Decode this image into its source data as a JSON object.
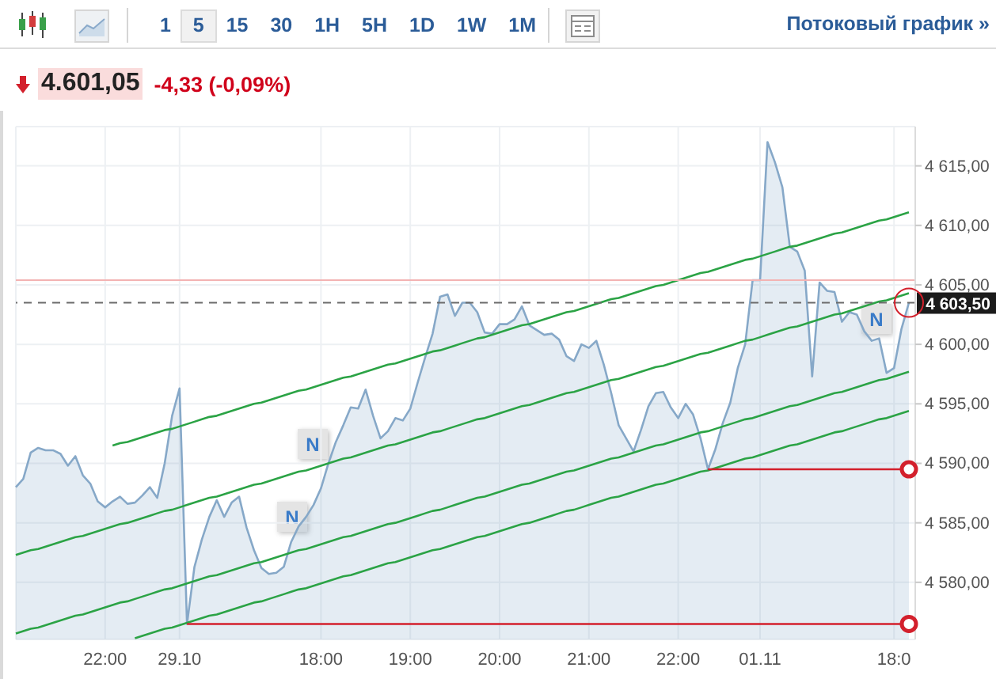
{
  "chart_data": {
    "type": "area",
    "title": "4.601,05",
    "subtitle": "-4,33 (-0,09%)",
    "annotations": [
      "1 5 15 30 1H 5H 1D 1W 1M",
      "Потоковый график »",
      "N",
      "N",
      "N"
    ],
    "categories": [
      null,
      null,
      null,
      null,
      null,
      null,
      null,
      null,
      null,
      null,
      null,
      null,
      "22:00",
      null,
      null,
      null,
      null,
      null,
      null,
      null,
      null,
      null,
      "29.10",
      null,
      null,
      null,
      null,
      null,
      null,
      null,
      null,
      null,
      null,
      null,
      null,
      null,
      null,
      null,
      null,
      null,
      null,
      "18:00",
      null,
      null,
      null,
      null,
      null,
      null,
      null,
      null,
      null,
      null,
      null,
      "19:00",
      null,
      null,
      null,
      null,
      null,
      null,
      null,
      null,
      null,
      null,
      null,
      "20:00",
      null,
      null,
      null,
      null,
      null,
      null,
      null,
      null,
      null,
      null,
      null,
      "21:00",
      null,
      null,
      null,
      null,
      null,
      null,
      null,
      null,
      null,
      null,
      null,
      "22:00",
      null,
      null,
      null,
      null,
      null,
      null,
      null,
      null,
      null,
      null,
      "01.11",
      null,
      null,
      null,
      null,
      null,
      null,
      null,
      null,
      null,
      null,
      null,
      null,
      null,
      null,
      null,
      null,
      null,
      "18:0",
      null,
      null
    ],
    "series": [
      {
        "color": "#86a8c8",
        "values": [
          4588.0,
          4588.7,
          4590.9,
          4591.3,
          4591.1,
          4591.1,
          4590.8,
          4589.8,
          4590.6,
          4589.0,
          4588.3,
          4586.8,
          4586.3,
          4586.8,
          4587.2,
          4586.6,
          4586.7,
          4587.3,
          4588.0,
          4587.1,
          4590.0,
          4594.0,
          4596.3,
          4576.5,
          4581.3,
          4583.6,
          4585.5,
          4586.9,
          4585.5,
          4586.7,
          4587.2,
          4584.6,
          4582.7,
          4581.2,
          4580.7,
          4580.8,
          4581.3,
          4583.4,
          4584.7,
          4585.5,
          4586.5,
          4587.9,
          4590.0,
          4591.8,
          4593.2,
          4594.7,
          4594.6,
          4596.2,
          4594.0,
          4592.1,
          4592.7,
          4593.8,
          4593.6,
          4594.6,
          4596.8,
          4598.9,
          4600.9,
          4604.0,
          4604.2,
          4602.4,
          4603.5,
          4603.5,
          4602.7,
          4601.0,
          4600.9,
          4601.7,
          4601.7,
          4602.1,
          4603.2,
          4601.6,
          4601.2,
          4600.8,
          4600.9,
          4600.4,
          4599.0,
          4598.6,
          4600.0,
          4599.7,
          4600.3,
          4598.3,
          4595.9,
          4593.2,
          4592.1,
          4591.0,
          4592.8,
          4594.8,
          4595.9,
          4596.0,
          4594.7,
          4593.8,
          4595.0,
          4594.1,
          4592.1,
          4589.5,
          4591.2,
          4593.4,
          4595.1,
          4598.0,
          4600.0,
          4605.4,
          4605.4,
          4617.0,
          4615.3,
          4613.2,
          4608.2,
          4607.8,
          4606.2,
          4597.3,
          4605.2,
          4604.5,
          4604.4,
          4601.9,
          4602.7,
          4602.5,
          4601.1,
          4600.3,
          4600.5,
          4597.6,
          4598.0,
          4601.3,
          4603.5
        ]
      },
      {
        "type": "line",
        "color": "#2ba345",
        "values": [
          null,
          null,
          null,
          null,
          null,
          null,
          null,
          null,
          null,
          null,
          null,
          null,
          null,
          4591.5,
          4591.7,
          4591.8,
          4592.0,
          4592.2,
          4592.4,
          4592.6,
          4592.8,
          4592.9,
          4593.1,
          4593.3,
          4593.5,
          4593.7,
          4593.9,
          4594.0,
          4594.2,
          4594.4,
          4594.6,
          4594.8,
          4595.0,
          4595.1,
          4595.3,
          4595.5,
          4595.7,
          4595.9,
          4596.1,
          4596.2,
          4596.4,
          4596.6,
          4596.8,
          4597.0,
          4597.2,
          4597.3,
          4597.5,
          4597.7,
          4597.9,
          4598.1,
          4598.3,
          4598.4,
          4598.6,
          4598.8,
          4599.0,
          4599.2,
          4599.4,
          4599.5,
          4599.7,
          4599.9,
          4600.1,
          4600.3,
          4600.5,
          4600.6,
          4600.8,
          4601.0,
          4601.2,
          4601.4,
          4601.6,
          4601.7,
          4601.9,
          4602.1,
          4602.3,
          4602.5,
          4602.7,
          4602.8,
          4603.0,
          4603.2,
          4603.4,
          4603.6,
          4603.8,
          4603.9,
          4604.1,
          4604.3,
          4604.5,
          4604.7,
          4604.9,
          4605.0,
          4605.2,
          4605.4,
          4605.6,
          4605.8,
          4606.0,
          4606.1,
          4606.3,
          4606.5,
          4606.7,
          4606.9,
          4607.1,
          4607.2,
          4607.4,
          4607.6,
          4607.8,
          4608.0,
          4608.2,
          4608.3,
          4608.5,
          4608.7,
          4608.9,
          4609.1,
          4609.3,
          4609.4,
          4609.6,
          4609.8,
          4610.0,
          4610.2,
          4610.4,
          4610.5,
          4610.7,
          4610.9,
          4611.1
        ]
      },
      {
        "type": "line",
        "color": "#2ba345",
        "values": [
          4582.3,
          4582.5,
          4582.7,
          4582.8,
          4583.0,
          4583.2,
          4583.4,
          4583.6,
          4583.8,
          4583.9,
          4584.1,
          4584.3,
          4584.5,
          4584.7,
          4584.9,
          4585.0,
          4585.2,
          4585.4,
          4585.6,
          4585.8,
          4586.0,
          4586.1,
          4586.3,
          4586.5,
          4586.7,
          4586.9,
          4587.1,
          4587.2,
          4587.4,
          4587.6,
          4587.8,
          4588.0,
          4588.2,
          4588.3,
          4588.5,
          4588.7,
          4588.9,
          4589.1,
          4589.3,
          4589.4,
          4589.6,
          4589.8,
          4590.0,
          4590.2,
          4590.4,
          4590.5,
          4590.7,
          4590.9,
          4591.1,
          4591.3,
          4591.5,
          4591.6,
          4591.8,
          4592.0,
          4592.2,
          4592.4,
          4592.6,
          4592.7,
          4592.9,
          4593.1,
          4593.3,
          4593.5,
          4593.7,
          4593.8,
          4594.0,
          4594.2,
          4594.4,
          4594.6,
          4594.8,
          4594.9,
          4595.1,
          4595.3,
          4595.5,
          4595.7,
          4595.9,
          4596.0,
          4596.2,
          4596.4,
          4596.6,
          4596.8,
          4597.0,
          4597.1,
          4597.3,
          4597.5,
          4597.7,
          4597.9,
          4598.1,
          4598.2,
          4598.4,
          4598.6,
          4598.8,
          4599.0,
          4599.2,
          4599.3,
          4599.5,
          4599.7,
          4599.9,
          4600.1,
          4600.3,
          4600.4,
          4600.6,
          4600.8,
          4601.0,
          4601.2,
          4601.4,
          4601.5,
          4601.7,
          4601.9,
          4602.1,
          4602.3,
          4602.5,
          4602.6,
          4602.8,
          4603.0,
          4603.2,
          4603.4,
          4603.6,
          4603.7,
          4603.9,
          4604.1,
          4604.3
        ]
      },
      {
        "type": "line",
        "color": "#2ba345",
        "values": [
          4575.7,
          4575.9,
          4576.1,
          4576.2,
          4576.4,
          4576.6,
          4576.8,
          4577.0,
          4577.2,
          4577.3,
          4577.5,
          4577.7,
          4577.9,
          4578.1,
          4578.3,
          4578.4,
          4578.6,
          4578.8,
          4579.0,
          4579.2,
          4579.4,
          4579.5,
          4579.7,
          4579.9,
          4580.1,
          4580.3,
          4580.5,
          4580.6,
          4580.8,
          4581.0,
          4581.2,
          4581.4,
          4581.6,
          4581.7,
          4581.9,
          4582.1,
          4582.3,
          4582.5,
          4582.7,
          4582.8,
          4583.0,
          4583.2,
          4583.4,
          4583.6,
          4583.8,
          4583.9,
          4584.1,
          4584.3,
          4584.5,
          4584.7,
          4584.9,
          4585.0,
          4585.2,
          4585.4,
          4585.6,
          4585.8,
          4586.0,
          4586.1,
          4586.3,
          4586.5,
          4586.7,
          4586.9,
          4587.1,
          4587.2,
          4587.4,
          4587.6,
          4587.8,
          4588.0,
          4588.2,
          4588.3,
          4588.5,
          4588.7,
          4588.9,
          4589.1,
          4589.3,
          4589.4,
          4589.6,
          4589.8,
          4590.0,
          4590.2,
          4590.4,
          4590.5,
          4590.7,
          4590.9,
          4591.1,
          4591.3,
          4591.5,
          4591.6,
          4591.8,
          4592.0,
          4592.2,
          4592.4,
          4592.6,
          4592.7,
          4592.9,
          4593.1,
          4593.3,
          4593.5,
          4593.7,
          4593.8,
          4594.0,
          4594.2,
          4594.4,
          4594.6,
          4594.8,
          4594.9,
          4595.1,
          4595.3,
          4595.5,
          4595.7,
          4595.9,
          4596.0,
          4596.2,
          4596.4,
          4596.6,
          4596.8,
          4597.0,
          4597.1,
          4597.3,
          4597.5,
          4597.7
        ]
      },
      {
        "type": "line",
        "color": "#2ba345",
        "values": [
          null,
          null,
          null,
          null,
          null,
          null,
          null,
          null,
          null,
          null,
          null,
          null,
          null,
          null,
          null,
          null,
          4575.3,
          4575.5,
          4575.7,
          4575.9,
          4576.1,
          4576.2,
          4576.4,
          4576.6,
          4576.8,
          4577.0,
          4577.2,
          4577.3,
          4577.5,
          4577.7,
          4577.9,
          4578.1,
          4578.3,
          4578.4,
          4578.6,
          4578.8,
          4579.0,
          4579.2,
          4579.4,
          4579.5,
          4579.7,
          4579.9,
          4580.1,
          4580.3,
          4580.5,
          4580.6,
          4580.8,
          4581.0,
          4581.2,
          4581.4,
          4581.6,
          4581.7,
          4581.9,
          4582.1,
          4582.3,
          4582.5,
          4582.7,
          4582.8,
          4583.0,
          4583.2,
          4583.4,
          4583.6,
          4583.8,
          4583.9,
          4584.1,
          4584.3,
          4584.5,
          4584.7,
          4584.9,
          4585.0,
          4585.2,
          4585.4,
          4585.6,
          4585.8,
          4586.0,
          4586.1,
          4586.3,
          4586.5,
          4586.7,
          4586.9,
          4587.1,
          4587.2,
          4587.4,
          4587.6,
          4587.8,
          4588.0,
          4588.2,
          4588.3,
          4588.5,
          4588.7,
          4588.9,
          4589.1,
          4589.3,
          4589.4,
          4589.6,
          4589.8,
          4590.0,
          4590.2,
          4590.4,
          4590.5,
          4590.7,
          4590.9,
          4591.1,
          4591.3,
          4591.5,
          4591.6,
          4591.8,
          4592.0,
          4592.2,
          4592.4,
          4592.6,
          4592.7,
          4592.9,
          4593.1,
          4593.3,
          4593.5,
          4593.7,
          4593.8,
          4594.0,
          4594.2,
          4594.4
        ]
      },
      {
        "type": "line",
        "color": "#d3202c",
        "values": [
          null,
          null,
          null,
          null,
          null,
          null,
          null,
          null,
          null,
          null,
          null,
          null,
          null,
          null,
          null,
          null,
          null,
          null,
          null,
          null,
          null,
          null,
          null,
          4576.5,
          4576.5,
          4576.5,
          4576.5,
          4576.5,
          4576.5,
          4576.5,
          4576.5,
          4576.5,
          4576.5,
          4576.5,
          4576.5,
          4576.5,
          4576.5,
          4576.5,
          4576.5,
          4576.5,
          4576.5,
          4576.5,
          4576.5,
          4576.5,
          4576.5,
          4576.5,
          4576.5,
          4576.5,
          4576.5,
          4576.5,
          4576.5,
          4576.5,
          4576.5,
          4576.5,
          4576.5,
          4576.5,
          4576.5,
          4576.5,
          4576.5,
          4576.5,
          4576.5,
          4576.5,
          4576.5,
          4576.5,
          4576.5,
          4576.5,
          4576.5,
          4576.5,
          4576.5,
          4576.5,
          4576.5,
          4576.5,
          4576.5,
          4576.5,
          4576.5,
          4576.5,
          4576.5,
          4576.5,
          4576.5,
          4576.5,
          4576.5,
          4576.5,
          4576.5,
          4576.5,
          4576.5,
          4576.5,
          4576.5,
          4576.5,
          4576.5,
          4576.5,
          4576.5,
          4576.5,
          4576.5,
          4576.5,
          4576.5,
          4576.5,
          4576.5,
          4576.5,
          4576.5,
          4576.5,
          4576.5,
          4576.5,
          4576.5,
          4576.5,
          4576.5,
          4576.5,
          4576.5,
          4576.5,
          4576.5,
          4576.5,
          4576.5,
          4576.5,
          4576.5,
          4576.5,
          4576.5,
          4576.5,
          4576.5,
          4576.5,
          4576.5,
          4576.5,
          4576.5
        ]
      },
      {
        "type": "line",
        "color": "#d3202c",
        "values": [
          null,
          null,
          null,
          null,
          null,
          null,
          null,
          null,
          null,
          null,
          null,
          null,
          null,
          null,
          null,
          null,
          null,
          null,
          null,
          null,
          null,
          null,
          null,
          null,
          null,
          null,
          null,
          null,
          null,
          null,
          null,
          null,
          null,
          null,
          null,
          null,
          null,
          null,
          null,
          null,
          null,
          null,
          null,
          null,
          null,
          null,
          null,
          null,
          null,
          null,
          null,
          null,
          null,
          null,
          null,
          null,
          null,
          null,
          null,
          null,
          null,
          null,
          null,
          null,
          null,
          null,
          null,
          null,
          null,
          null,
          null,
          null,
          null,
          null,
          null,
          null,
          null,
          null,
          null,
          null,
          null,
          null,
          null,
          null,
          null,
          null,
          null,
          null,
          null,
          null,
          null,
          null,
          null,
          4589.5,
          4589.5,
          4589.5,
          4589.5,
          4589.5,
          4589.5,
          4589.5,
          4589.5,
          4589.5,
          4589.5,
          4589.5,
          4589.5,
          4589.5,
          4589.5,
          4589.5,
          4589.5,
          4589.5,
          4589.5,
          4589.5,
          4589.5,
          4589.5,
          4589.5,
          4589.5,
          4589.5,
          4589.5,
          4589.5,
          4589.5,
          4589.5
        ]
      }
    ],
    "ylim": [
      4575.2,
      4618.3
    ],
    "yticks": [
      {
        "value": 4580,
        "label": "4 580,00"
      },
      {
        "value": 4585,
        "label": "4 585,00"
      },
      {
        "value": 4590,
        "label": "4 590,00"
      },
      {
        "value": 4595,
        "label": "4 595,00"
      },
      {
        "value": 4600,
        "label": "4 600,00"
      },
      {
        "value": 4605,
        "label": "4 605,00"
      },
      {
        "value": 4610,
        "label": "4 610,00"
      },
      {
        "value": 4615,
        "label": "4 615,00"
      }
    ],
    "grid": true,
    "marker": "none",
    "ref_lines": [
      {
        "axis": "y",
        "value": 4605.4,
        "color": "#f3b3b3"
      },
      {
        "axis": "y",
        "value": 4603.5,
        "label": "4 603,50",
        "color": "#6b6b6b",
        "line_style": "dashed"
      }
    ]
  }
}
